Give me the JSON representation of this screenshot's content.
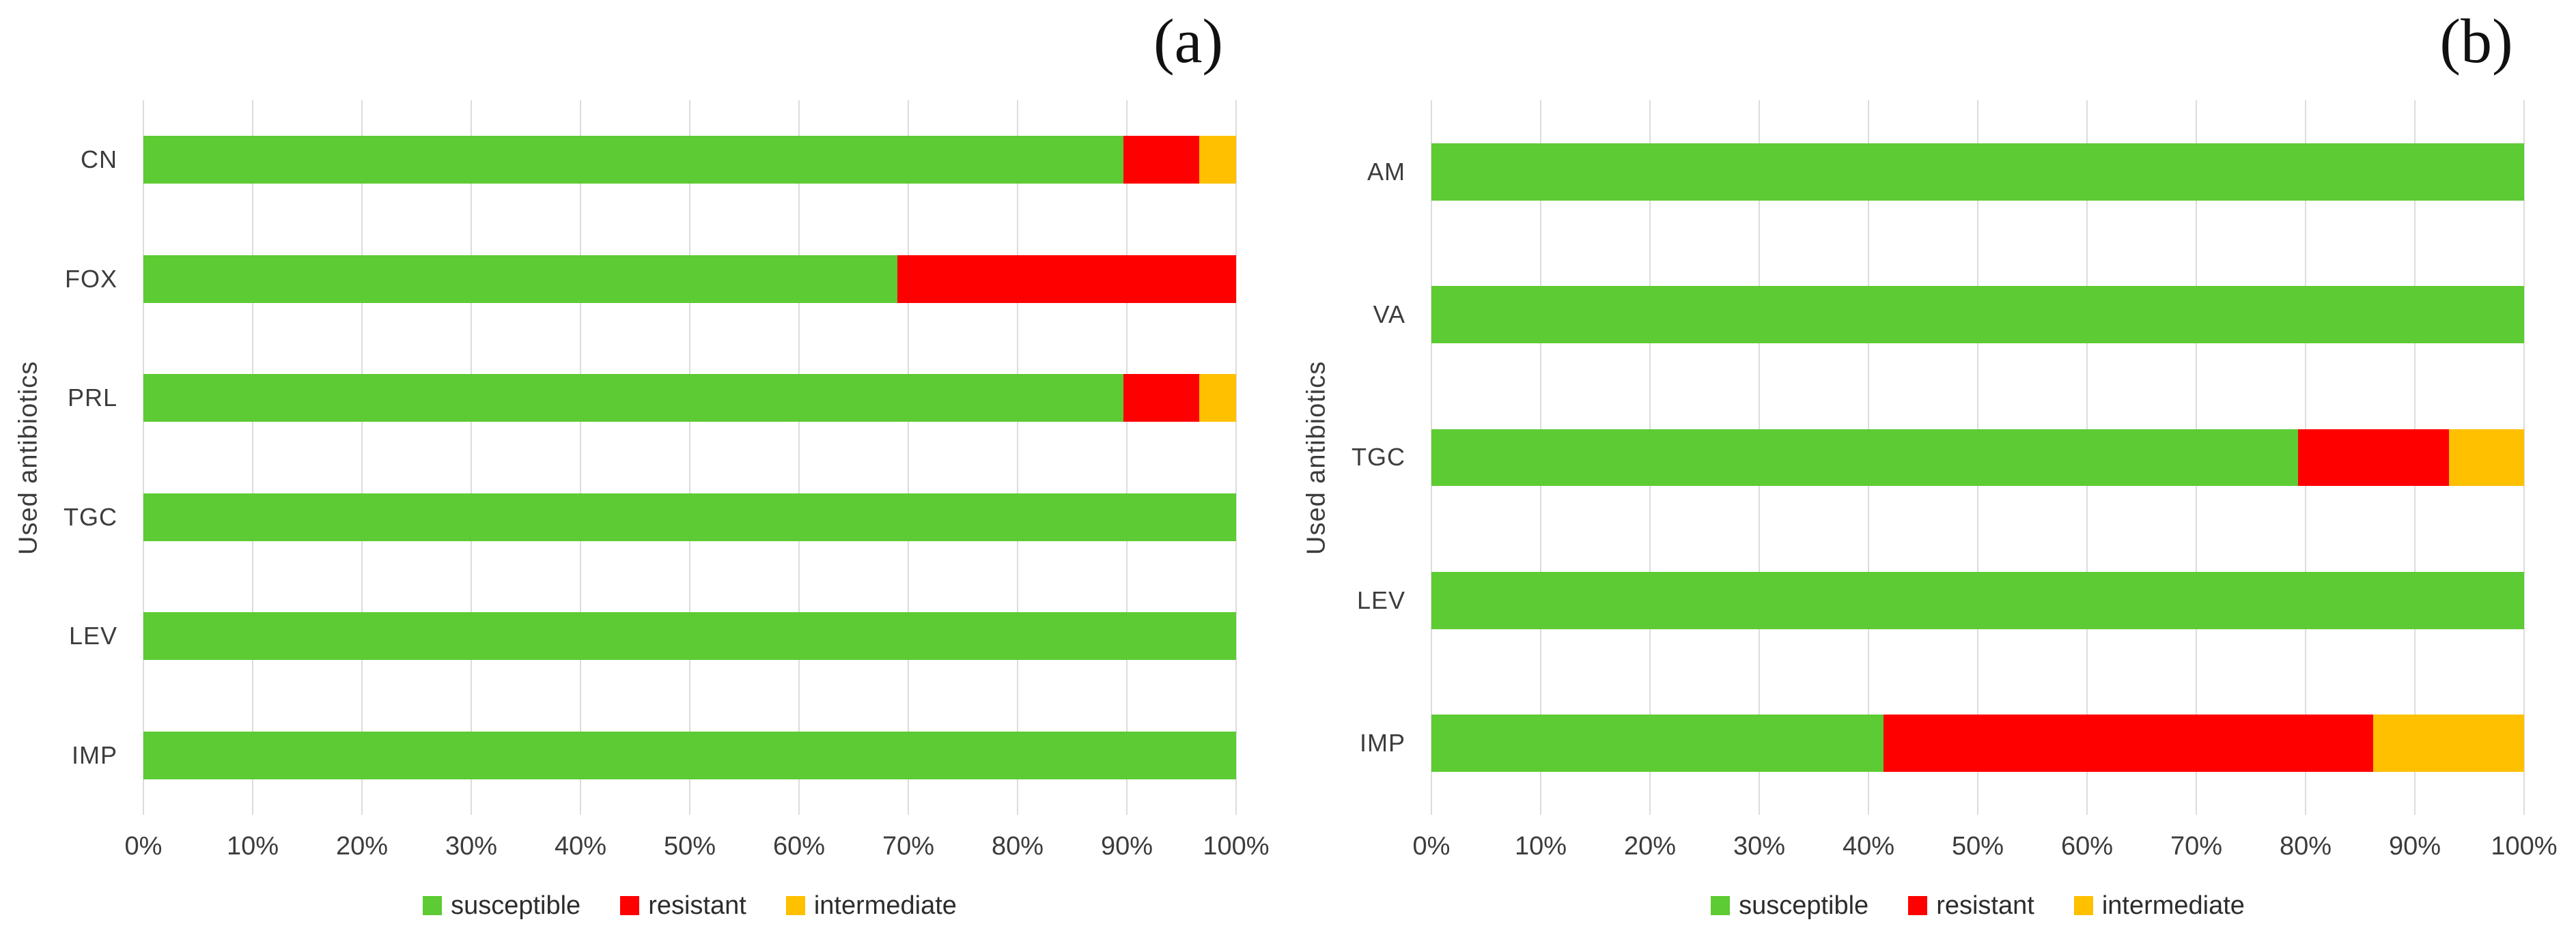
{
  "figure": {
    "description": "Two horizontal stacked bar charts of antibiotic susceptibility"
  },
  "chart_data": [
    {
      "type": "bar",
      "orientation": "horizontal",
      "stacked": true,
      "title": "(a)",
      "ylabel": "Used antibiotics",
      "xlabel": "",
      "categories": [
        "CN",
        "FOX",
        "PRL",
        "TGC",
        "LEV",
        "IMP"
      ],
      "series": [
        {
          "name": "susceptible",
          "color": "#5DCB33",
          "values": [
            89.7,
            69.0,
            89.7,
            100,
            100,
            100
          ]
        },
        {
          "name": "resistant",
          "color": "#FE0000",
          "values": [
            6.9,
            31.0,
            6.9,
            0,
            0,
            0
          ]
        },
        {
          "name": "intermediate",
          "color": "#FFC000",
          "values": [
            3.4,
            0,
            3.4,
            0,
            0,
            0
          ]
        }
      ],
      "xlim": [
        0,
        100
      ],
      "xticks": [
        "0%",
        "10%",
        "20%",
        "30%",
        "40%",
        "50%",
        "60%",
        "70%",
        "80%",
        "90%",
        "100%"
      ],
      "grid": true,
      "legend_position": "bottom"
    },
    {
      "type": "bar",
      "orientation": "horizontal",
      "stacked": true,
      "title": "(b)",
      "ylabel": "Used antibiotics",
      "xlabel": "",
      "categories": [
        "AM",
        "VA",
        "TGC",
        "LEV",
        "IMP"
      ],
      "series": [
        {
          "name": "susceptible",
          "color": "#5DCB33",
          "values": [
            100,
            100,
            79.3,
            100,
            41.4
          ]
        },
        {
          "name": "resistant",
          "color": "#FE0000",
          "values": [
            0,
            0,
            13.8,
            0,
            44.8
          ]
        },
        {
          "name": "intermediate",
          "color": "#FFC000",
          "values": [
            0,
            0,
            6.9,
            0,
            13.8
          ]
        }
      ],
      "xlim": [
        0,
        100
      ],
      "xticks": [
        "0%",
        "10%",
        "20%",
        "30%",
        "40%",
        "50%",
        "60%",
        "70%",
        "80%",
        "90%",
        "100%"
      ],
      "grid": true,
      "legend_position": "bottom"
    }
  ]
}
